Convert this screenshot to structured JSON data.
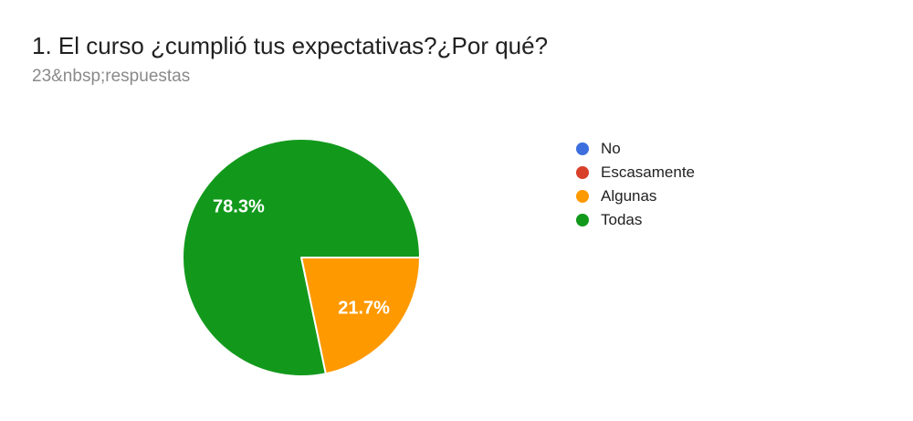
{
  "header": {
    "title": "1. El curso ¿cumplió tus expectativas?¿Por qué?",
    "responses_label": "23&nbsp;respuestas"
  },
  "chart_data": {
    "type": "pie",
    "title": "1. El curso ¿cumplió tus expectativas?¿Por qué?",
    "responses_total_label": "23&nbsp;respuestas",
    "legend_position": "right",
    "start_angle_deg": 90,
    "slice_border_color": "#ffffff",
    "label_color": "#ffffff",
    "series": [
      {
        "name": "No",
        "percent": 0,
        "label": "",
        "color": "#3C6FDD"
      },
      {
        "name": "Escasamente",
        "percent": 0,
        "label": "",
        "color": "#D8402A"
      },
      {
        "name": "Algunas",
        "percent": 21.7,
        "label": "21.7%",
        "color": "#FF9900"
      },
      {
        "name": "Todas",
        "percent": 78.3,
        "label": "78.3%",
        "color": "#12991C"
      }
    ]
  }
}
